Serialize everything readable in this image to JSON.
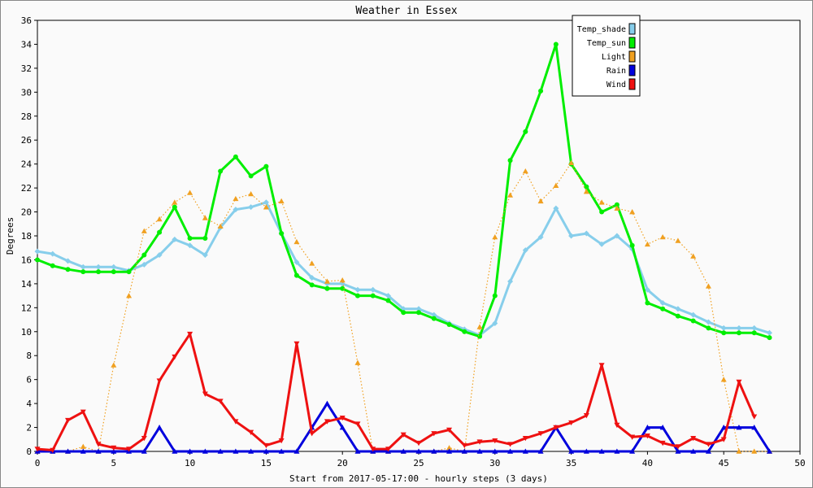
{
  "chart_data": {
    "type": "line",
    "title": "Weather in Essex",
    "xlabel": "Start from 2017-05-17:00 - hourly steps (3 days)",
    "ylabel": "Degrees",
    "xlim": [
      0,
      50
    ],
    "ylim": [
      0,
      36
    ],
    "xticks": [
      0,
      5,
      10,
      15,
      20,
      25,
      30,
      35,
      40,
      45,
      50
    ],
    "yticks": [
      0,
      2,
      4,
      6,
      8,
      10,
      12,
      14,
      16,
      18,
      20,
      22,
      24,
      26,
      28,
      30,
      32,
      34,
      36
    ],
    "grid": true,
    "legend_position": "top-right",
    "x": [
      0,
      1,
      2,
      3,
      4,
      5,
      6,
      7,
      8,
      9,
      10,
      11,
      12,
      13,
      14,
      15,
      16,
      17,
      18,
      19,
      20,
      21,
      22,
      23,
      24,
      25,
      26,
      27,
      28,
      29,
      30,
      31,
      32,
      33,
      34,
      35,
      36,
      37,
      38,
      39,
      40,
      41,
      42,
      43,
      44,
      45,
      46,
      47,
      48
    ],
    "series": [
      {
        "name": "Temp_shade",
        "color": "#87ceeb",
        "marker": "diamond",
        "dash": "solid",
        "values": [
          16.7,
          16.5,
          15.9,
          15.4,
          15.4,
          15.4,
          15.1,
          15.6,
          16.4,
          17.7,
          17.2,
          16.4,
          18.7,
          20.2,
          20.4,
          20.8,
          18.2,
          15.8,
          14.5,
          14.0,
          14.0,
          13.5,
          13.5,
          13.0,
          11.9,
          11.9,
          11.4,
          10.7,
          10.2,
          9.7,
          10.7,
          14.2,
          16.8,
          17.9,
          20.3,
          18.0,
          18.2,
          17.3,
          18.0,
          16.9,
          13.5,
          12.4,
          11.9,
          11.4,
          10.8,
          10.3,
          10.3,
          10.3,
          9.9
        ]
      },
      {
        "name": "Temp_sun",
        "color": "#00ee00",
        "marker": "circle",
        "dash": "solid",
        "values": [
          16.0,
          15.5,
          15.2,
          15.0,
          15.0,
          15.0,
          15.0,
          16.4,
          18.3,
          20.4,
          17.8,
          17.8,
          23.4,
          24.6,
          23.0,
          23.8,
          18.2,
          14.7,
          13.9,
          13.6,
          13.6,
          13.0,
          13.0,
          12.6,
          11.6,
          11.6,
          11.1,
          10.6,
          10.0,
          9.6,
          13.0,
          24.3,
          26.7,
          30.1,
          34.0,
          24.0,
          22.1,
          20.0,
          20.6,
          17.2,
          12.4,
          11.9,
          11.3,
          10.9,
          10.3,
          9.9,
          9.9,
          9.9,
          9.5
        ]
      },
      {
        "name": "Light",
        "color": "#f0a020",
        "marker": "triangle-up",
        "dash": "dotted",
        "values": [
          0,
          0,
          0,
          0.4,
          0,
          7.2,
          13.0,
          18.4,
          19.4,
          20.8,
          21.6,
          19.5,
          18.8,
          21.1,
          21.5,
          20.4,
          20.9,
          17.5,
          15.7,
          14.2,
          14.3,
          7.4,
          0,
          0,
          0,
          0,
          0,
          0.3,
          0,
          10.4,
          17.9,
          21.4,
          23.4,
          20.9,
          22.2,
          24.1,
          21.7,
          20.8,
          20.3,
          20.0,
          17.3,
          17.9,
          17.6,
          16.3,
          13.8,
          6.0,
          0,
          0,
          0
        ]
      },
      {
        "name": "Rain",
        "color": "#0000dd",
        "marker": "triangle-up",
        "dash": "solid",
        "values": [
          0,
          0,
          0,
          0,
          0,
          0,
          0,
          0,
          2,
          0,
          0,
          0,
          0,
          0,
          0,
          0,
          0,
          0,
          2,
          4,
          2,
          0,
          0,
          0,
          0,
          0,
          0,
          0,
          0,
          0,
          0,
          0,
          0,
          0,
          2,
          0,
          0,
          0,
          0,
          0,
          2,
          2,
          0,
          0,
          0,
          2,
          2,
          2,
          0
        ]
      },
      {
        "name": "Wind",
        "color": "#ee1111",
        "marker": "triangle-down",
        "dash": "solid",
        "values": [
          0.2,
          0.1,
          2.6,
          3.3,
          0.6,
          0.3,
          0.2,
          1.1,
          5.9,
          7.9,
          9.8,
          4.8,
          4.2,
          2.5,
          1.6,
          0.5,
          0.9,
          9.0,
          1.5,
          2.5,
          2.8,
          2.3,
          0.2,
          0.2,
          1.4,
          0.7,
          1.5,
          1.8,
          0.5,
          0.8,
          0.9,
          0.6,
          1.1,
          1.5,
          2.0,
          2.4,
          3.0,
          7.2,
          2.2,
          1.2,
          1.3,
          0.7,
          0.4,
          1.1,
          0.6,
          1.0,
          5.8,
          2.9,
          null
        ]
      }
    ]
  }
}
